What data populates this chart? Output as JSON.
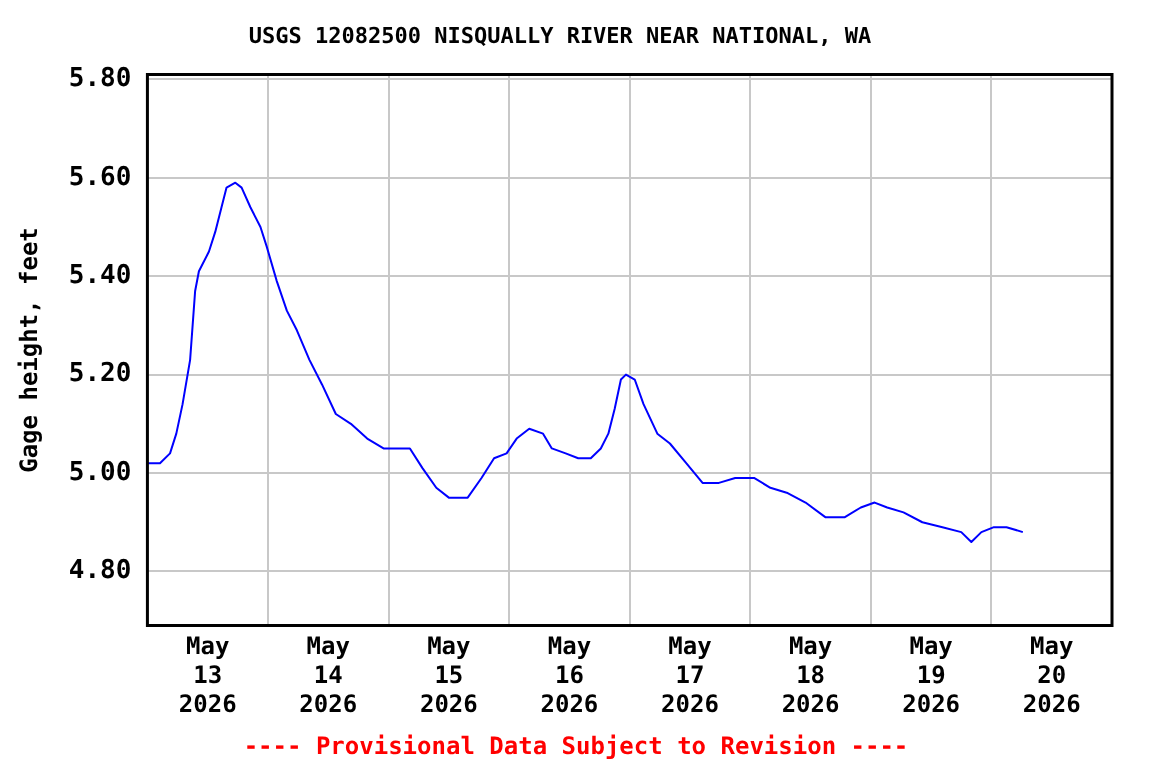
{
  "chart_data": {
    "type": "line",
    "title": "USGS 12082500 NISQUALLY RIVER NEAR NATIONAL, WA",
    "ylabel": "Gage height, feet",
    "annotations": [
      "---- Provisional Data Subject to Revision ----"
    ],
    "x": [
      "2026-05-13T00:00",
      "2026-05-13T02:30",
      "2026-05-13T04:30",
      "2026-05-13T05:45",
      "2026-05-13T07:00",
      "2026-05-13T08:30",
      "2026-05-13T09:30",
      "2026-05-13T10:15",
      "2026-05-13T12:15",
      "2026-05-13T13:30",
      "2026-05-13T14:45",
      "2026-05-13T15:45",
      "2026-05-13T17:30",
      "2026-05-13T18:45",
      "2026-05-13T20:30",
      "2026-05-13T22:30",
      "2026-05-13T23:45",
      "2026-05-14T01:45",
      "2026-05-14T03:45",
      "2026-05-14T05:45",
      "2026-05-14T08:15",
      "2026-05-14T10:45",
      "2026-05-14T13:30",
      "2026-05-14T16:30",
      "2026-05-14T19:45",
      "2026-05-14T23:00",
      "2026-05-15T01:45",
      "2026-05-15T04:15",
      "2026-05-15T06:45",
      "2026-05-15T09:30",
      "2026-05-15T12:00",
      "2026-05-15T15:45",
      "2026-05-15T18:30",
      "2026-05-15T21:00",
      "2026-05-15T23:30",
      "2026-05-16T01:30",
      "2026-05-16T04:00",
      "2026-05-16T06:45",
      "2026-05-16T08:30",
      "2026-05-16T11:15",
      "2026-05-16T13:45",
      "2026-05-16T16:15",
      "2026-05-16T18:15",
      "2026-05-16T19:45",
      "2026-05-16T21:00",
      "2026-05-16T22:15",
      "2026-05-16T23:15",
      "2026-05-17T01:00",
      "2026-05-17T02:45",
      "2026-05-17T05:30",
      "2026-05-17T08:00",
      "2026-05-17T11:15",
      "2026-05-17T14:30",
      "2026-05-17T17:45",
      "2026-05-17T21:00",
      "2026-05-18T00:45",
      "2026-05-18T04:00",
      "2026-05-18T07:15",
      "2026-05-18T11:00",
      "2026-05-18T15:00",
      "2026-05-18T18:45",
      "2026-05-18T22:00",
      "2026-05-19T00:45",
      "2026-05-19T03:15",
      "2026-05-19T06:30",
      "2026-05-19T10:15",
      "2026-05-19T14:15",
      "2026-05-19T18:00",
      "2026-05-19T20:00",
      "2026-05-19T22:00",
      "2026-05-20T00:30",
      "2026-05-20T03:00",
      "2026-05-20T06:15"
    ],
    "series": [
      {
        "color": "#0000ff",
        "values": [
          5.02,
          5.02,
          5.04,
          5.08,
          5.14,
          5.23,
          5.37,
          5.41,
          5.45,
          5.49,
          5.54,
          5.58,
          5.59,
          5.58,
          5.54,
          5.5,
          5.46,
          5.39,
          5.33,
          5.29,
          5.23,
          5.18,
          5.12,
          5.1,
          5.07,
          5.05,
          5.05,
          5.05,
          5.01,
          4.97,
          4.95,
          4.95,
          4.99,
          5.03,
          5.04,
          5.07,
          5.09,
          5.08,
          5.05,
          5.04,
          5.03,
          5.03,
          5.05,
          5.08,
          5.13,
          5.19,
          5.2,
          5.19,
          5.14,
          5.08,
          5.06,
          5.02,
          4.98,
          4.98,
          4.99,
          4.99,
          4.97,
          4.96,
          4.94,
          4.91,
          4.91,
          4.93,
          4.94,
          4.93,
          4.92,
          4.9,
          4.89,
          4.88,
          4.86,
          4.88,
          4.89,
          4.89,
          4.88
        ]
      }
    ],
    "xlim": [
      "2026-05-13",
      "2026-05-21"
    ],
    "xticks": [
      {
        "value": "2026-05-13T12:00",
        "label": "May 13 2026"
      },
      {
        "value": "2026-05-14",
        "label": null
      },
      {
        "value": "2026-05-14T12:00",
        "label": "May 14 2026"
      },
      {
        "value": "2026-05-15",
        "label": null
      },
      {
        "value": "2026-05-15T12:00",
        "label": "May 15 2026"
      },
      {
        "value": "2026-05-16",
        "label": null
      },
      {
        "value": "2026-05-16T12:00",
        "label": "May 16 2026"
      },
      {
        "value": "2026-05-17",
        "label": null
      },
      {
        "value": "2026-05-17T12:00",
        "label": "May 17 2026"
      },
      {
        "value": "2026-05-18",
        "label": null
      },
      {
        "value": "2026-05-18T12:00",
        "label": "May 18 2026"
      },
      {
        "value": "2026-05-19",
        "label": null
      },
      {
        "value": "2026-05-19T12:00",
        "label": "May 19 2026"
      },
      {
        "value": "2026-05-20",
        "label": null
      },
      {
        "value": "2026-05-20T12:00",
        "label": "May 20 2026"
      }
    ],
    "ylim": [
      4.69,
      5.81
    ],
    "yticks": [
      {
        "value": 4.8,
        "label": "4.80"
      },
      {
        "value": 5.0,
        "label": "5.00"
      },
      {
        "value": 5.2,
        "label": "5.20"
      },
      {
        "value": 5.4,
        "label": "5.40"
      },
      {
        "value": 5.6,
        "label": "5.60"
      },
      {
        "value": 5.8,
        "label": "5.80"
      }
    ],
    "grid": true,
    "legend": false,
    "marker": "none",
    "line_style": "solid"
  }
}
